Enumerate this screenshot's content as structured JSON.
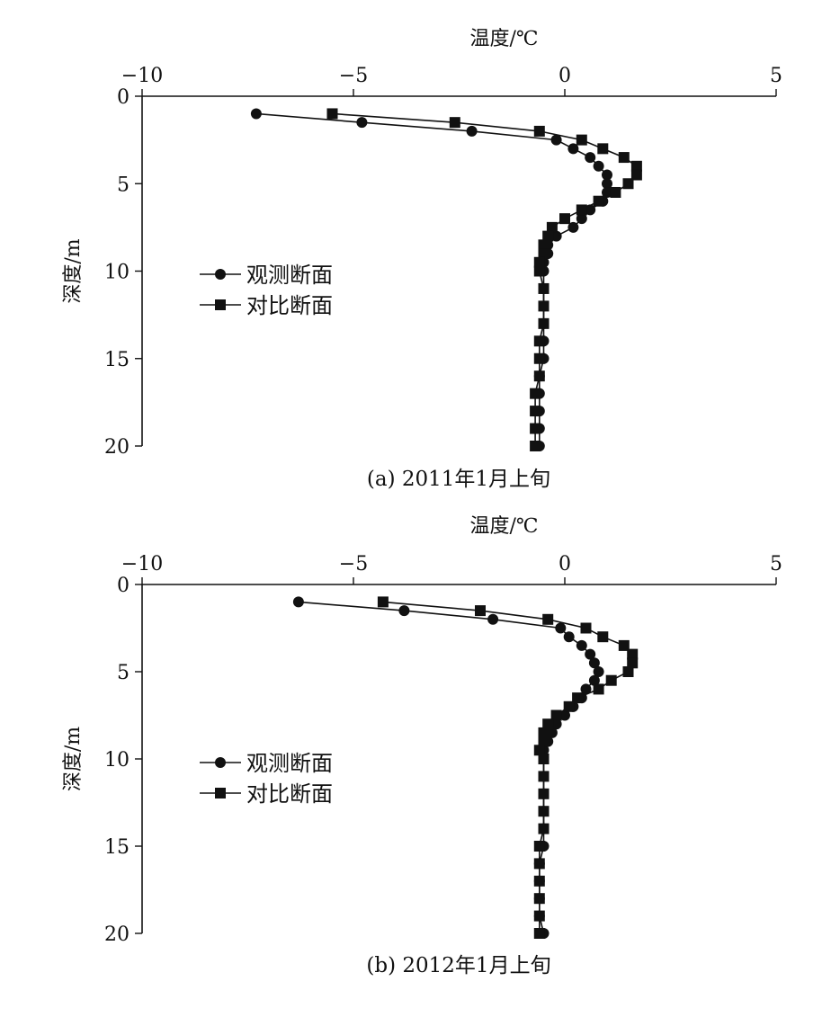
{
  "chart_data": [
    {
      "type": "line",
      "id": "a",
      "caption": "(a)  2011年1月上旬",
      "xlabel": "温度/℃",
      "ylabel": "深度/m",
      "xlim": [
        -10,
        5
      ],
      "ylim": [
        0,
        20
      ],
      "x_axis_position": "top",
      "y_axis_inverted": true,
      "xticks": [
        -10,
        -5,
        0,
        5
      ],
      "yticks": [
        0,
        5,
        10,
        15,
        20
      ],
      "grid": false,
      "legend_position": "center-left",
      "series": [
        {
          "name": "观测断面",
          "marker": "circle",
          "points": [
            [
              -7.3,
              1
            ],
            [
              -4.8,
              1.5
            ],
            [
              -2.2,
              2
            ],
            [
              -0.2,
              2.5
            ],
            [
              0.2,
              3
            ],
            [
              0.6,
              3.5
            ],
            [
              0.8,
              4
            ],
            [
              1.0,
              4.5
            ],
            [
              1.0,
              5
            ],
            [
              1.0,
              5.5
            ],
            [
              0.9,
              6
            ],
            [
              0.6,
              6.5
            ],
            [
              0.4,
              7
            ],
            [
              0.2,
              7.5
            ],
            [
              -0.2,
              8
            ],
            [
              -0.4,
              8.5
            ],
            [
              -0.4,
              9
            ],
            [
              -0.5,
              9.5
            ],
            [
              -0.5,
              10
            ],
            [
              -0.5,
              11
            ],
            [
              -0.5,
              12
            ],
            [
              -0.5,
              13
            ],
            [
              -0.5,
              14
            ],
            [
              -0.5,
              15
            ],
            [
              -0.6,
              16
            ],
            [
              -0.6,
              17
            ],
            [
              -0.6,
              18
            ],
            [
              -0.6,
              19
            ],
            [
              -0.6,
              20
            ]
          ]
        },
        {
          "name": "对比断面",
          "marker": "square",
          "points": [
            [
              -5.5,
              1
            ],
            [
              -2.6,
              1.5
            ],
            [
              -0.6,
              2
            ],
            [
              0.4,
              2.5
            ],
            [
              0.9,
              3
            ],
            [
              1.4,
              3.5
            ],
            [
              1.7,
              4
            ],
            [
              1.7,
              4.5
            ],
            [
              1.5,
              5
            ],
            [
              1.2,
              5.5
            ],
            [
              0.8,
              6
            ],
            [
              0.4,
              6.5
            ],
            [
              0.0,
              7
            ],
            [
              -0.3,
              7.5
            ],
            [
              -0.4,
              8
            ],
            [
              -0.5,
              8.5
            ],
            [
              -0.5,
              9
            ],
            [
              -0.6,
              9.5
            ],
            [
              -0.6,
              10
            ],
            [
              -0.5,
              11
            ],
            [
              -0.5,
              12
            ],
            [
              -0.5,
              13
            ],
            [
              -0.6,
              14
            ],
            [
              -0.6,
              15
            ],
            [
              -0.6,
              16
            ],
            [
              -0.7,
              17
            ],
            [
              -0.7,
              18
            ],
            [
              -0.7,
              19
            ],
            [
              -0.7,
              20
            ]
          ]
        }
      ]
    },
    {
      "type": "line",
      "id": "b",
      "caption": "(b)  2012年1月上旬",
      "xlabel": "温度/℃",
      "ylabel": "深度/m",
      "xlim": [
        -10,
        5
      ],
      "ylim": [
        0,
        20
      ],
      "x_axis_position": "top",
      "y_axis_inverted": true,
      "xticks": [
        -10,
        -5,
        0,
        5
      ],
      "yticks": [
        0,
        5,
        10,
        15,
        20
      ],
      "grid": false,
      "legend_position": "center-left",
      "series": [
        {
          "name": "观测断面",
          "marker": "circle",
          "points": [
            [
              -6.3,
              1
            ],
            [
              -3.8,
              1.5
            ],
            [
              -1.7,
              2
            ],
            [
              -0.1,
              2.5
            ],
            [
              0.1,
              3
            ],
            [
              0.4,
              3.5
            ],
            [
              0.6,
              4
            ],
            [
              0.7,
              4.5
            ],
            [
              0.8,
              5
            ],
            [
              0.7,
              5.5
            ],
            [
              0.5,
              6
            ],
            [
              0.4,
              6.5
            ],
            [
              0.2,
              7
            ],
            [
              0.0,
              7.5
            ],
            [
              -0.2,
              8
            ],
            [
              -0.3,
              8.5
            ],
            [
              -0.4,
              9
            ],
            [
              -0.5,
              9.5
            ],
            [
              -0.5,
              10
            ],
            [
              -0.5,
              11
            ],
            [
              -0.5,
              12
            ],
            [
              -0.5,
              13
            ],
            [
              -0.5,
              14
            ],
            [
              -0.5,
              15
            ],
            [
              -0.6,
              16
            ],
            [
              -0.6,
              17
            ],
            [
              -0.6,
              18
            ],
            [
              -0.6,
              19
            ],
            [
              -0.5,
              20
            ]
          ]
        },
        {
          "name": "对比断面",
          "marker": "square",
          "points": [
            [
              -4.3,
              1
            ],
            [
              -2.0,
              1.5
            ],
            [
              -0.4,
              2
            ],
            [
              0.5,
              2.5
            ],
            [
              0.9,
              3
            ],
            [
              1.4,
              3.5
            ],
            [
              1.6,
              4
            ],
            [
              1.6,
              4.5
            ],
            [
              1.5,
              5
            ],
            [
              1.1,
              5.5
            ],
            [
              0.8,
              6
            ],
            [
              0.3,
              6.5
            ],
            [
              0.1,
              7
            ],
            [
              -0.2,
              7.5
            ],
            [
              -0.4,
              8
            ],
            [
              -0.5,
              8.5
            ],
            [
              -0.5,
              9
            ],
            [
              -0.6,
              9.5
            ],
            [
              -0.5,
              10
            ],
            [
              -0.5,
              11
            ],
            [
              -0.5,
              12
            ],
            [
              -0.5,
              13
            ],
            [
              -0.5,
              14
            ],
            [
              -0.6,
              15
            ],
            [
              -0.6,
              16
            ],
            [
              -0.6,
              17
            ],
            [
              -0.6,
              18
            ],
            [
              -0.6,
              19
            ],
            [
              -0.6,
              20
            ]
          ]
        }
      ]
    }
  ]
}
